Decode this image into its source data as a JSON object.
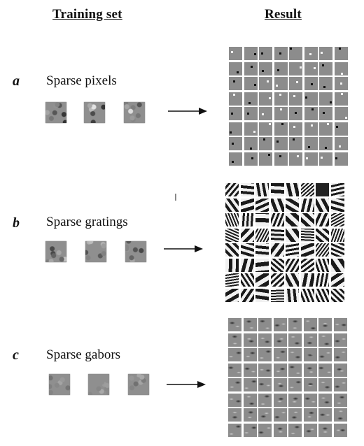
{
  "headers": {
    "training_set": "Training set",
    "result": "Result"
  },
  "rows": [
    {
      "letter": "a",
      "label": "Sparse pixels"
    },
    {
      "letter": "b",
      "label": "Sparse gratings"
    },
    {
      "letter": "c",
      "label": "Sparse gabors"
    }
  ],
  "colors": {
    "cell_gray": "#8c8c8c",
    "ink": "#111111"
  }
}
